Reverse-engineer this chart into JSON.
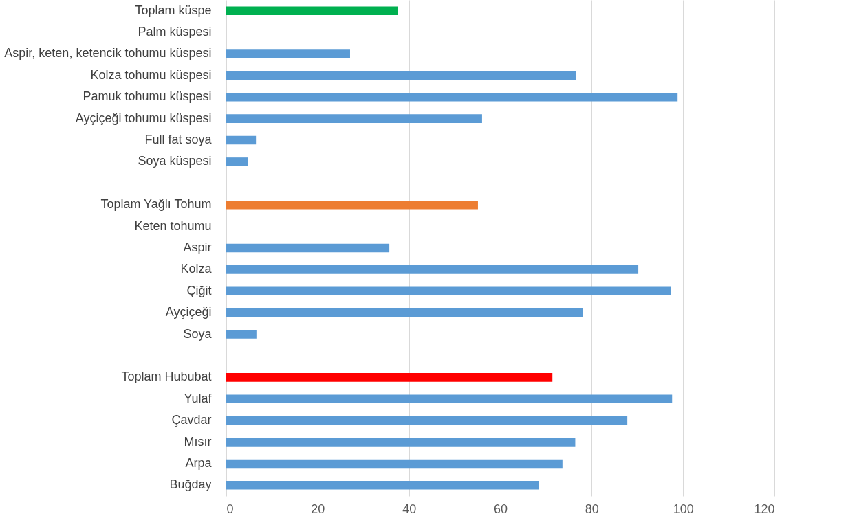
{
  "chart_data": {
    "type": "bar",
    "orientation": "horizontal",
    "categories": [
      "Toplam küspe",
      "Palm küspesi",
      "Aspir, keten, ketencik tohumu küspesi",
      "Kolza tohumu küspesi",
      "Pamuk tohumu küspesi",
      "Ayçiçeği tohumu küspesi",
      "Full fat soya",
      "Soya küspesi",
      null,
      "Toplam Yağlı Tohum",
      "Keten tohumu",
      "Aspir",
      "Kolza",
      "Çiğit",
      "Ayçiçeği",
      "Soya",
      null,
      "Toplam Hububat",
      "Yulaf",
      "Çavdar",
      "Mısır",
      "Arpa",
      "Buğday"
    ],
    "values": [
      37.6,
      null,
      27.1,
      76.6,
      98.8,
      56.0,
      6.5,
      4.8,
      null,
      55.1,
      null,
      35.7,
      90.2,
      97.3,
      78.0,
      6.6,
      null,
      71.4,
      97.6,
      87.8,
      76.4,
      73.6,
      68.5
    ],
    "colors": [
      "#00b050",
      "#5b9bd5",
      "#5b9bd5",
      "#5b9bd5",
      "#5b9bd5",
      "#5b9bd5",
      "#5b9bd5",
      "#5b9bd5",
      "#5b9bd5",
      "#ed7d31",
      "#5b9bd5",
      "#5b9bd5",
      "#5b9bd5",
      "#5b9bd5",
      "#5b9bd5",
      "#5b9bd5",
      "#5b9bd5",
      "#ff0000",
      "#5b9bd5",
      "#5b9bd5",
      "#5b9bd5",
      "#5b9bd5",
      "#5b9bd5"
    ],
    "xlim": [
      0,
      120
    ],
    "xticks": [
      0,
      20,
      40,
      60,
      80,
      100,
      120
    ],
    "grid": "x"
  }
}
